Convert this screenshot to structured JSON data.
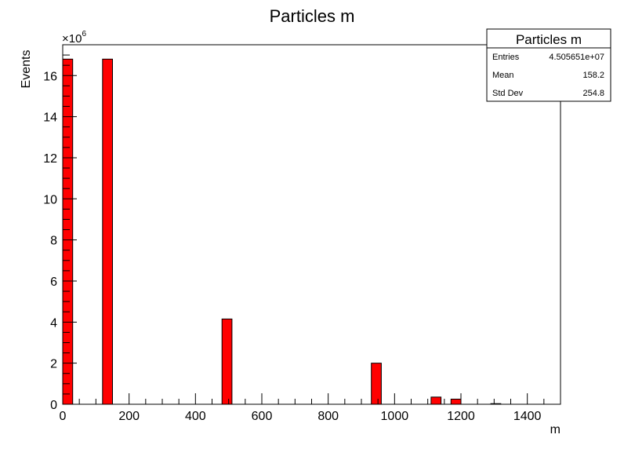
{
  "chart_data": {
    "type": "bar",
    "title": "Particles m",
    "xlabel": "m",
    "ylabel": "Events",
    "y_exponent": "×10",
    "y_exponent_power": "6",
    "xlim": [
      0,
      1500
    ],
    "ylim": [
      0,
      17.5
    ],
    "y_scale_factor": 1000000,
    "bin_width": 30,
    "x_ticks": [
      0,
      200,
      400,
      600,
      800,
      1000,
      1200,
      1400
    ],
    "y_ticks": [
      0,
      2,
      4,
      6,
      8,
      10,
      12,
      14,
      16
    ],
    "bins": [
      {
        "x": 0,
        "value": 16.8
      },
      {
        "x": 120,
        "value": 16.8
      },
      {
        "x": 480,
        "value": 4.15
      },
      {
        "x": 930,
        "value": 2.0
      },
      {
        "x": 1110,
        "value": 0.35
      },
      {
        "x": 1170,
        "value": 0.25
      },
      {
        "x": 1290,
        "value": 0.03
      }
    ],
    "bar_color": "#ff0000",
    "grid": false,
    "stats": {
      "title": "Particles m",
      "rows": [
        {
          "label": "Entries",
          "value": "4.505651e+07"
        },
        {
          "label": "Mean",
          "value": "158.2"
        },
        {
          "label": "Std Dev",
          "value": "254.8"
        }
      ]
    }
  }
}
